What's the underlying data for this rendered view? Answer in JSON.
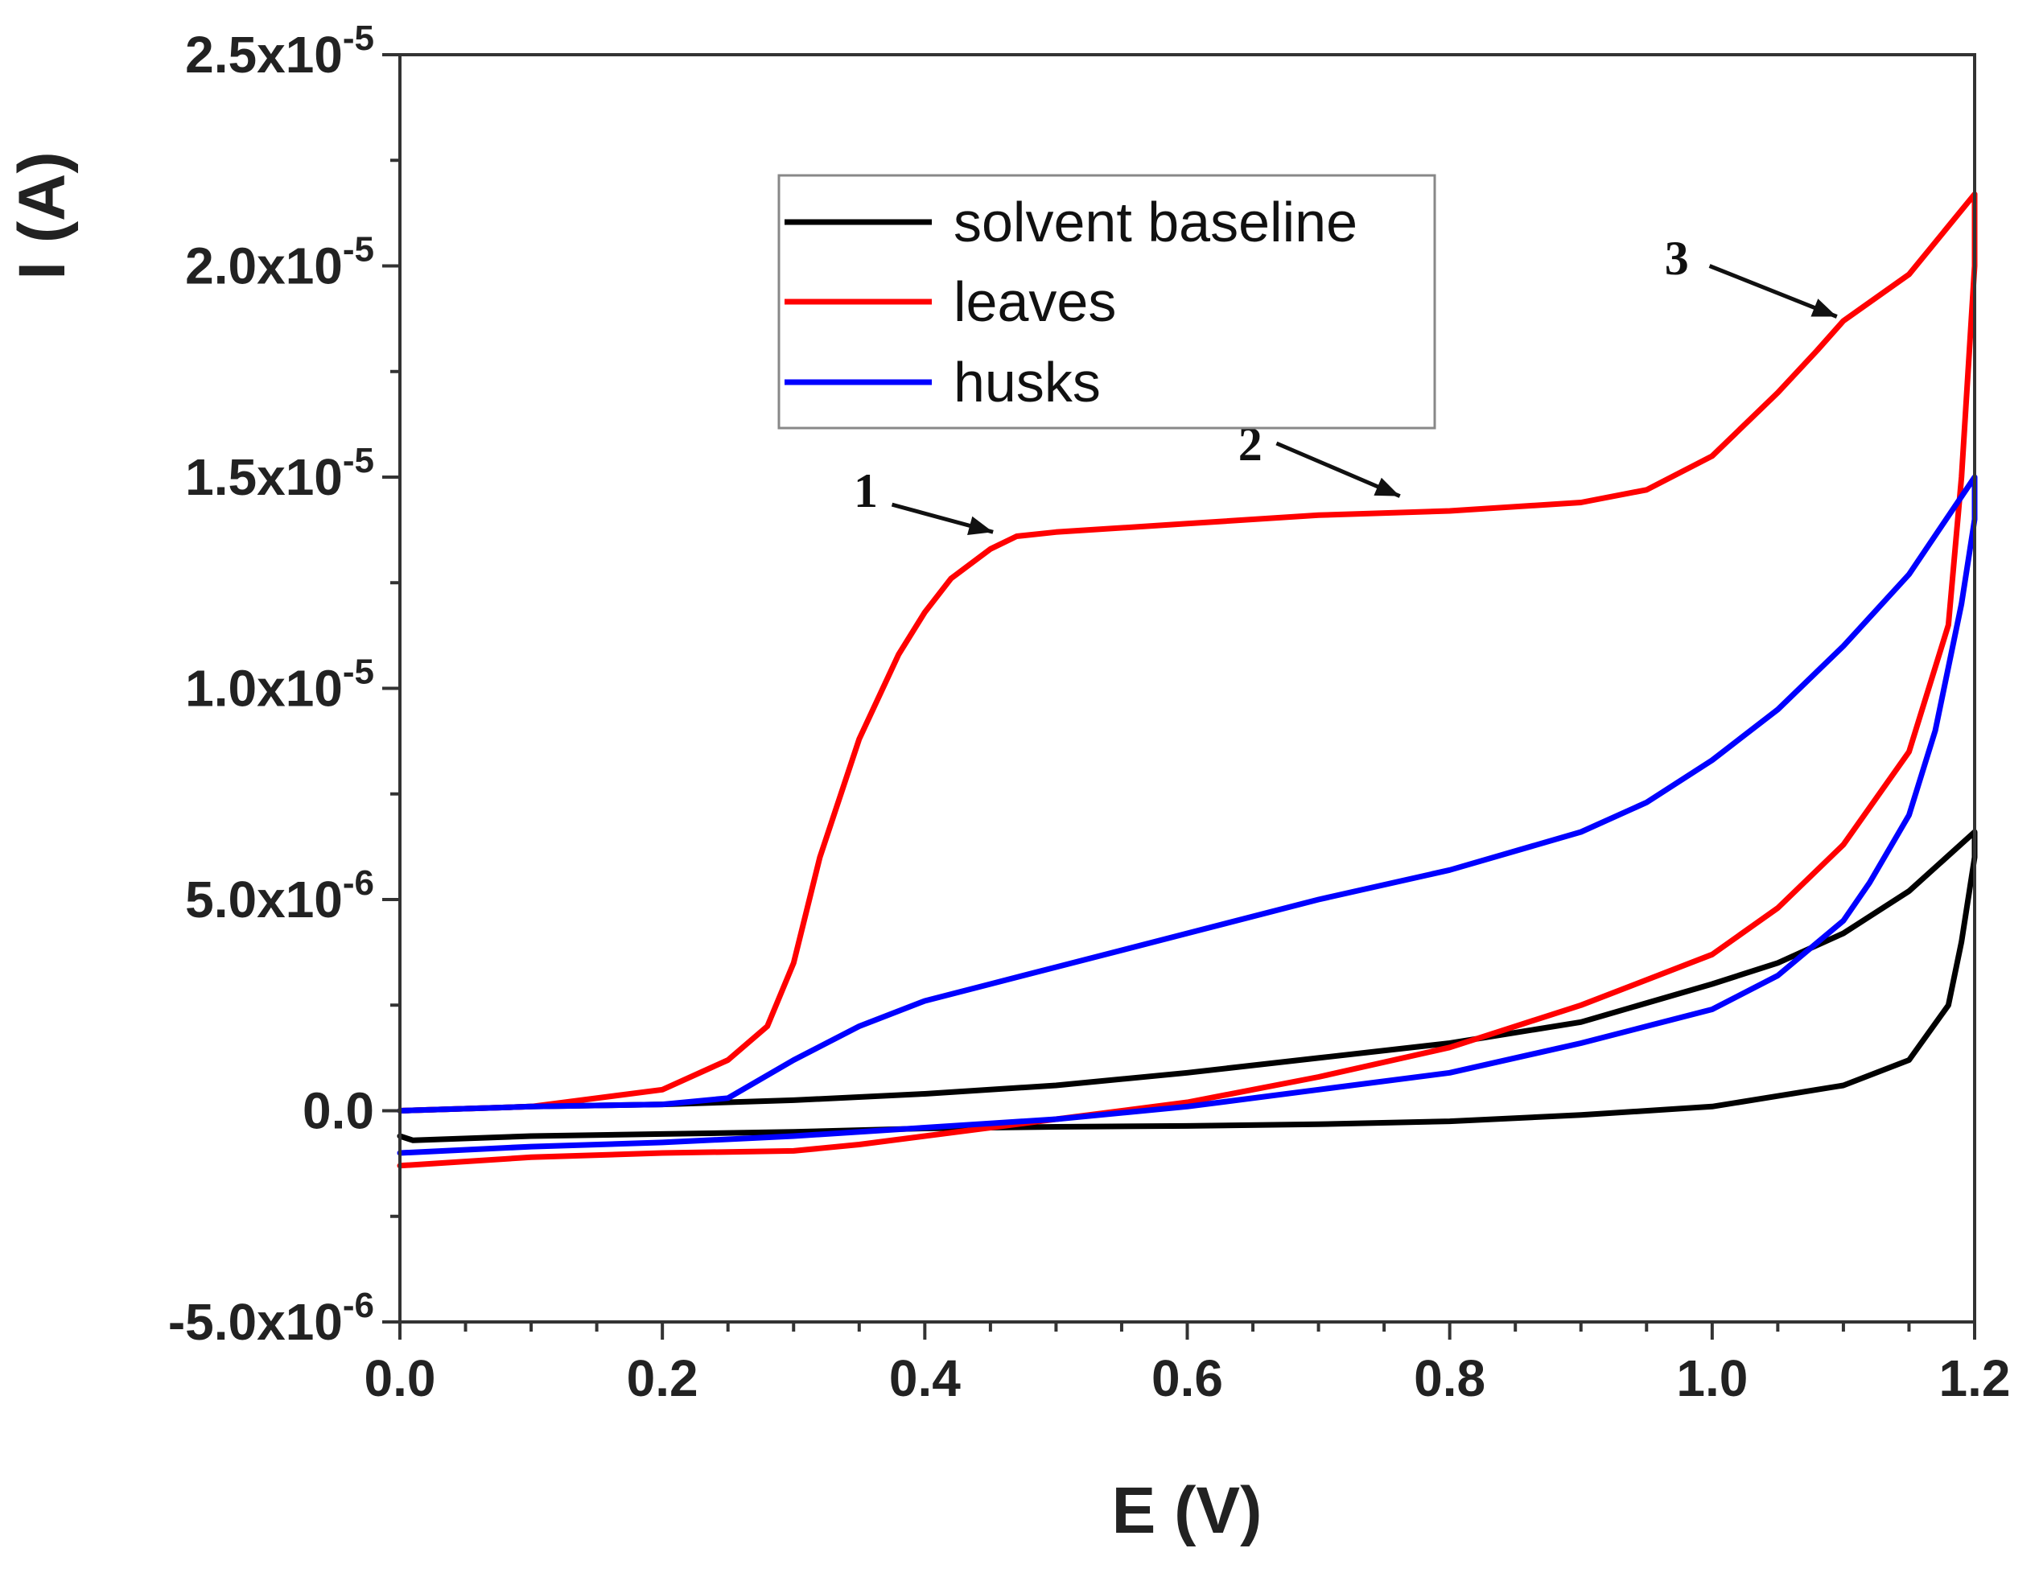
{
  "chart_data": {
    "type": "line",
    "title": "",
    "xlabel": "E (V)",
    "ylabel": "I (A)",
    "xlim": [
      0.0,
      1.2
    ],
    "ylim": [
      -5e-06,
      2.5e-05
    ],
    "grid": false,
    "legend_position": "top-center",
    "x_ticks": [
      {
        "value": 0.0,
        "label": "0.0"
      },
      {
        "value": 0.2,
        "label": "0.2"
      },
      {
        "value": 0.4,
        "label": "0.4"
      },
      {
        "value": 0.6,
        "label": "0.6"
      },
      {
        "value": 0.8,
        "label": "0.8"
      },
      {
        "value": 1.0,
        "label": "1.0"
      },
      {
        "value": 1.2,
        "label": "1.2"
      }
    ],
    "y_ticks": [
      {
        "value": -5e-06,
        "mantissa": "-5.0x10",
        "exp": "-6"
      },
      {
        "value": 0.0,
        "mantissa": "0.0",
        "exp": ""
      },
      {
        "value": 5e-06,
        "mantissa": "5.0x10",
        "exp": "-6"
      },
      {
        "value": 1e-05,
        "mantissa": "1.0x10",
        "exp": "-5"
      },
      {
        "value": 1.5e-05,
        "mantissa": "1.5x10",
        "exp": "-5"
      },
      {
        "value": 2e-05,
        "mantissa": "2.0x10",
        "exp": "-5"
      },
      {
        "value": 2.5e-05,
        "mantissa": "2.5x10",
        "exp": "-5"
      }
    ],
    "series": [
      {
        "name": "solvent baseline",
        "color": "#000000",
        "x": [
          0.0,
          0.1,
          0.2,
          0.3,
          0.4,
          0.5,
          0.6,
          0.7,
          0.8,
          0.9,
          1.0,
          1.05,
          1.1,
          1.15,
          1.2,
          1.2,
          1.19,
          1.18,
          1.15,
          1.1,
          1.0,
          0.9,
          0.8,
          0.7,
          0.6,
          0.5,
          0.4,
          0.3,
          0.2,
          0.1,
          0.01,
          0.0
        ],
        "y": [
          0.0,
          1e-07,
          1.5e-07,
          2.5e-07,
          4e-07,
          6e-07,
          9e-07,
          1.25e-06,
          1.6e-06,
          2.1e-06,
          3e-06,
          3.5e-06,
          4.2e-06,
          5.2e-06,
          6.6e-06,
          6e-06,
          4e-06,
          2.5e-06,
          1.2e-06,
          6e-07,
          1e-07,
          -1e-07,
          -2.5e-07,
          -3.2e-07,
          -3.6e-07,
          -3.8e-07,
          -4.2e-07,
          -5e-07,
          -5.5e-07,
          -6e-07,
          -7e-07,
          -6e-07
        ]
      },
      {
        "name": "leaves",
        "color": "#ff0000",
        "x": [
          0.0,
          0.1,
          0.2,
          0.25,
          0.28,
          0.3,
          0.32,
          0.35,
          0.38,
          0.4,
          0.42,
          0.45,
          0.47,
          0.5,
          0.6,
          0.7,
          0.8,
          0.9,
          0.95,
          1.0,
          1.05,
          1.08,
          1.1,
          1.15,
          1.2,
          1.2,
          1.19,
          1.18,
          1.15,
          1.1,
          1.05,
          1.0,
          0.9,
          0.8,
          0.7,
          0.6,
          0.5,
          0.45,
          0.4,
          0.35,
          0.3,
          0.2,
          0.1,
          0.0
        ],
        "y": [
          0.0,
          1e-07,
          5e-07,
          1.2e-06,
          2e-06,
          3.5e-06,
          6e-06,
          8.8e-06,
          1.08e-05,
          1.18e-05,
          1.26e-05,
          1.33e-05,
          1.36e-05,
          1.37e-05,
          1.39e-05,
          1.41e-05,
          1.42e-05,
          1.44e-05,
          1.47e-05,
          1.55e-05,
          1.7e-05,
          1.8e-05,
          1.87e-05,
          1.98e-05,
          2.17e-05,
          2e-05,
          1.5e-05,
          1.15e-05,
          8.5e-06,
          6.3e-06,
          4.8e-06,
          3.7e-06,
          2.5e-06,
          1.5e-06,
          8e-07,
          2e-07,
          -2e-07,
          -4e-07,
          -6e-07,
          -8e-07,
          -9.5e-07,
          -1e-06,
          -1.1e-06,
          -1.3e-06
        ]
      },
      {
        "name": "husks",
        "color": "#0000ff",
        "x": [
          0.0,
          0.1,
          0.2,
          0.25,
          0.3,
          0.35,
          0.4,
          0.45,
          0.5,
          0.6,
          0.7,
          0.8,
          0.9,
          0.95,
          1.0,
          1.05,
          1.1,
          1.15,
          1.2,
          1.2,
          1.19,
          1.17,
          1.15,
          1.12,
          1.1,
          1.05,
          1.0,
          0.9,
          0.8,
          0.7,
          0.6,
          0.5,
          0.4,
          0.3,
          0.2,
          0.1,
          0.0
        ],
        "y": [
          0.0,
          1e-07,
          1.5e-07,
          3e-07,
          1.2e-06,
          2e-06,
          2.6e-06,
          3e-06,
          3.4e-06,
          4.2e-06,
          5e-06,
          5.7e-06,
          6.6e-06,
          7.3e-06,
          8.3e-06,
          9.5e-06,
          1.1e-05,
          1.27e-05,
          1.5e-05,
          1.4e-05,
          1.2e-05,
          9e-06,
          7e-06,
          5.4e-06,
          4.5e-06,
          3.2e-06,
          2.4e-06,
          1.6e-06,
          9e-07,
          5e-07,
          1e-07,
          -2e-07,
          -4e-07,
          -6e-07,
          -7.5e-07,
          -8.5e-07,
          -1e-06
        ]
      }
    ],
    "annotations": [
      {
        "label": "1",
        "text_x": 0.355,
        "text_y": 1.43e-05,
        "from_x": 0.375,
        "from_y": 1.435e-05,
        "to_x": 0.452,
        "to_y": 1.37e-05
      },
      {
        "label": "2",
        "text_x": 0.648,
        "text_y": 1.54e-05,
        "from_x": 0.668,
        "from_y": 1.58e-05,
        "to_x": 0.762,
        "to_y": 1.455e-05
      },
      {
        "label": "3",
        "text_x": 0.973,
        "text_y": 1.98e-05,
        "from_x": 0.998,
        "from_y": 2e-05,
        "to_x": 1.095,
        "to_y": 1.88e-05
      }
    ]
  }
}
